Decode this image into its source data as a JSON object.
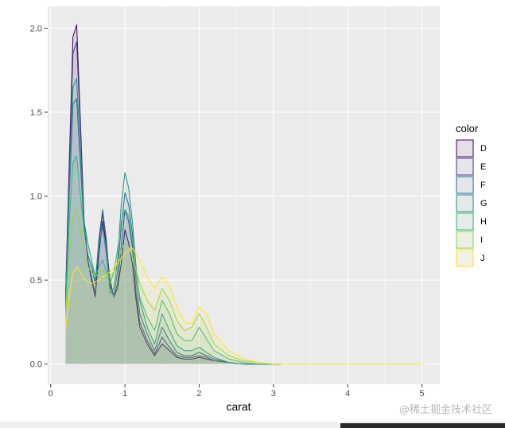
{
  "chart_data": {
    "type": "area",
    "xlabel": "carat",
    "ylabel": "",
    "xlim": [
      -0.04,
      5.24
    ],
    "ylim": [
      -0.12,
      2.13
    ],
    "x_ticks": [
      0,
      1,
      2,
      3,
      4,
      5
    ],
    "y_ticks": [
      0.0,
      0.5,
      1.0,
      1.5,
      2.0
    ],
    "x_tick_labels": [
      "0",
      "1",
      "2",
      "3",
      "4",
      "5"
    ],
    "y_tick_labels": [
      "0.0",
      "0.5",
      "1.0",
      "1.5",
      "2.0"
    ],
    "panel_background": "#EBEBEB",
    "grid": true,
    "legend": {
      "title": "color",
      "position": "right"
    },
    "series": [
      {
        "name": "D",
        "color": "#440154",
        "fill": "#44015414",
        "x": [
          0.2,
          0.25,
          0.3,
          0.35,
          0.4,
          0.45,
          0.5,
          0.55,
          0.6,
          0.65,
          0.7,
          0.75,
          0.8,
          0.85,
          0.9,
          0.95,
          1.0,
          1.05,
          1.1,
          1.15,
          1.2,
          1.3,
          1.4,
          1.5,
          1.6,
          1.7,
          1.8,
          1.9,
          2.0,
          2.1,
          2.2,
          2.4,
          2.6,
          2.8,
          3.0,
          3.1
        ],
        "values": [
          0.4,
          1.2,
          1.95,
          2.02,
          1.45,
          0.85,
          0.62,
          0.5,
          0.4,
          0.66,
          0.85,
          0.7,
          0.5,
          0.4,
          0.45,
          0.6,
          0.8,
          0.72,
          0.6,
          0.38,
          0.22,
          0.12,
          0.05,
          0.12,
          0.08,
          0.04,
          0.03,
          0.03,
          0.04,
          0.03,
          0.02,
          0.01,
          0.0,
          0.0,
          0.0,
          0.0
        ]
      },
      {
        "name": "E",
        "color": "#443A83",
        "fill": "#443A8314",
        "x": [
          0.2,
          0.25,
          0.3,
          0.35,
          0.4,
          0.45,
          0.5,
          0.55,
          0.6,
          0.65,
          0.7,
          0.75,
          0.8,
          0.85,
          0.9,
          0.95,
          1.0,
          1.05,
          1.1,
          1.15,
          1.2,
          1.3,
          1.4,
          1.5,
          1.6,
          1.7,
          1.8,
          1.9,
          2.0,
          2.1,
          2.2,
          2.4,
          2.6,
          2.8,
          3.0,
          3.1
        ],
        "values": [
          0.38,
          1.15,
          1.85,
          1.92,
          1.4,
          0.85,
          0.62,
          0.52,
          0.42,
          0.72,
          0.9,
          0.72,
          0.48,
          0.4,
          0.48,
          0.7,
          0.92,
          0.85,
          0.7,
          0.42,
          0.25,
          0.14,
          0.06,
          0.16,
          0.1,
          0.05,
          0.04,
          0.04,
          0.05,
          0.04,
          0.02,
          0.01,
          0.0,
          0.0,
          0.0,
          0.0
        ]
      },
      {
        "name": "F",
        "color": "#31688E",
        "fill": "#31688E14",
        "x": [
          0.2,
          0.25,
          0.3,
          0.35,
          0.4,
          0.45,
          0.5,
          0.55,
          0.6,
          0.65,
          0.7,
          0.75,
          0.8,
          0.85,
          0.9,
          0.95,
          1.0,
          1.05,
          1.1,
          1.15,
          1.2,
          1.3,
          1.4,
          1.5,
          1.6,
          1.7,
          1.8,
          1.9,
          2.0,
          2.1,
          2.2,
          2.4,
          2.6,
          2.8,
          3.0,
          3.1
        ],
        "values": [
          0.35,
          1.0,
          1.55,
          1.58,
          1.2,
          0.8,
          0.65,
          0.58,
          0.48,
          0.75,
          0.92,
          0.74,
          0.46,
          0.4,
          0.55,
          0.82,
          1.02,
          0.95,
          0.78,
          0.5,
          0.3,
          0.18,
          0.08,
          0.22,
          0.14,
          0.07,
          0.05,
          0.05,
          0.07,
          0.05,
          0.03,
          0.01,
          0.0,
          0.0,
          0.0,
          0.0
        ]
      },
      {
        "name": "G",
        "color": "#21908C",
        "fill": "#21908C14",
        "x": [
          0.2,
          0.25,
          0.3,
          0.35,
          0.4,
          0.45,
          0.5,
          0.55,
          0.6,
          0.65,
          0.7,
          0.75,
          0.8,
          0.85,
          0.9,
          0.95,
          1.0,
          1.05,
          1.1,
          1.15,
          1.2,
          1.3,
          1.4,
          1.5,
          1.6,
          1.7,
          1.8,
          1.9,
          2.0,
          2.1,
          2.2,
          2.4,
          2.6,
          2.8,
          3.0,
          3.1
        ],
        "values": [
          0.34,
          1.05,
          1.65,
          1.7,
          1.25,
          0.85,
          0.72,
          0.62,
          0.5,
          0.7,
          0.82,
          0.65,
          0.42,
          0.45,
          0.62,
          0.95,
          1.14,
          1.05,
          0.85,
          0.58,
          0.38,
          0.22,
          0.12,
          0.3,
          0.2,
          0.11,
          0.08,
          0.08,
          0.1,
          0.07,
          0.04,
          0.01,
          0.0,
          0.0,
          0.0,
          0.0
        ]
      },
      {
        "name": "H",
        "color": "#35B779",
        "fill": "#35B77914",
        "x": [
          0.2,
          0.25,
          0.3,
          0.35,
          0.4,
          0.45,
          0.5,
          0.55,
          0.6,
          0.65,
          0.7,
          0.75,
          0.8,
          0.85,
          0.9,
          0.95,
          1.0,
          1.05,
          1.1,
          1.15,
          1.2,
          1.3,
          1.4,
          1.5,
          1.6,
          1.7,
          1.8,
          1.9,
          2.0,
          2.1,
          2.2,
          2.4,
          2.6,
          2.8,
          3.0,
          3.1
        ],
        "values": [
          0.32,
          0.85,
          1.2,
          1.24,
          1.0,
          0.8,
          0.72,
          0.62,
          0.52,
          0.58,
          0.62,
          0.55,
          0.48,
          0.55,
          0.68,
          0.85,
          0.92,
          0.88,
          0.74,
          0.55,
          0.4,
          0.28,
          0.2,
          0.38,
          0.3,
          0.18,
          0.14,
          0.14,
          0.22,
          0.15,
          0.08,
          0.03,
          0.01,
          0.0,
          0.0,
          0.0
        ]
      },
      {
        "name": "I",
        "color": "#8FD744",
        "fill": "#8FD74414",
        "x": [
          0.2,
          0.25,
          0.3,
          0.35,
          0.4,
          0.45,
          0.5,
          0.55,
          0.6,
          0.65,
          0.7,
          0.75,
          0.8,
          0.85,
          0.9,
          0.95,
          1.0,
          1.05,
          1.1,
          1.15,
          1.2,
          1.3,
          1.4,
          1.5,
          1.6,
          1.7,
          1.8,
          1.9,
          2.0,
          2.1,
          2.2,
          2.4,
          2.6,
          2.8,
          3.0,
          3.1
        ],
        "values": [
          0.3,
          0.65,
          0.88,
          0.92,
          0.8,
          0.64,
          0.58,
          0.55,
          0.52,
          0.54,
          0.56,
          0.53,
          0.52,
          0.55,
          0.6,
          0.68,
          0.72,
          0.7,
          0.64,
          0.56,
          0.48,
          0.38,
          0.32,
          0.45,
          0.38,
          0.26,
          0.2,
          0.22,
          0.3,
          0.22,
          0.12,
          0.05,
          0.02,
          0.01,
          0.0,
          0.0
        ]
      },
      {
        "name": "J",
        "color": "#FDE725",
        "fill": "#FDE72514",
        "x": [
          0.2,
          0.25,
          0.3,
          0.35,
          0.4,
          0.45,
          0.5,
          0.55,
          0.6,
          0.65,
          0.7,
          0.75,
          0.8,
          0.85,
          0.9,
          0.95,
          1.0,
          1.05,
          1.1,
          1.15,
          1.2,
          1.3,
          1.4,
          1.5,
          1.6,
          1.7,
          1.8,
          1.9,
          2.0,
          2.1,
          2.2,
          2.4,
          2.6,
          2.8,
          3.0,
          3.1,
          3.5,
          4.0,
          4.5,
          5.01
        ],
        "values": [
          0.2,
          0.4,
          0.54,
          0.58,
          0.55,
          0.51,
          0.49,
          0.48,
          0.49,
          0.5,
          0.52,
          0.53,
          0.55,
          0.58,
          0.6,
          0.63,
          0.66,
          0.68,
          0.69,
          0.66,
          0.62,
          0.52,
          0.45,
          0.52,
          0.47,
          0.34,
          0.25,
          0.24,
          0.34,
          0.3,
          0.18,
          0.08,
          0.03,
          0.01,
          0.0,
          0.0,
          0.0,
          0.0,
          0.0,
          0.0
        ]
      }
    ]
  },
  "watermark": "@稀土掘金技术社区"
}
